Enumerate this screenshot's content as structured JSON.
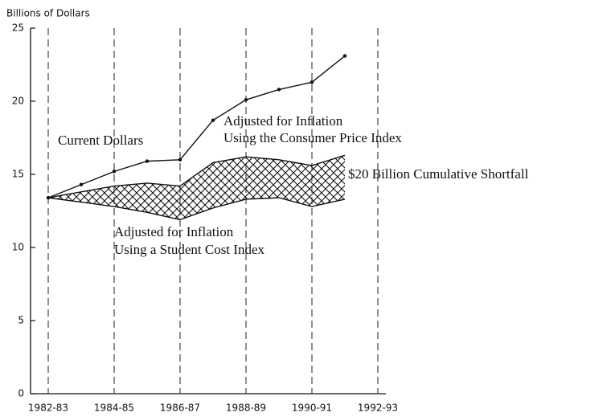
{
  "chart_data": {
    "type": "line",
    "y_axis_label": "Billions of Dollars",
    "categories": [
      "1982-83",
      null,
      "1984-85",
      null,
      "1986-87",
      null,
      "1988-89",
      null,
      "1990-91",
      null,
      "1992-93"
    ],
    "series": [
      {
        "color": "#111111",
        "markers": true,
        "values": [
          13.4,
          14.3,
          15.2,
          15.9,
          16.0,
          18.7,
          20.1,
          20.8,
          21.3,
          23.1,
          null
        ]
      },
      {
        "color": "#111111",
        "markers": false,
        "values": [
          13.4,
          13.8,
          14.2,
          14.4,
          14.2,
          15.8,
          16.2,
          16.0,
          15.6,
          16.3,
          null
        ]
      },
      {
        "color": "#111111",
        "markers": false,
        "values": [
          13.4,
          13.1,
          12.8,
          12.4,
          11.9,
          12.7,
          13.3,
          13.4,
          12.8,
          13.3,
          null
        ]
      }
    ],
    "annotations": [
      "Current Dollars",
      "Adjusted for Inflation",
      "Using the Consumer Price Index",
      "$20 Billion Cumulative Shortfall",
      "Adjusted for Inflation",
      "Using a Student Cost Index"
    ],
    "ylim": [
      0,
      25
    ],
    "yticks": [
      0,
      5,
      10,
      15,
      20,
      25
    ],
    "grid": true
  }
}
